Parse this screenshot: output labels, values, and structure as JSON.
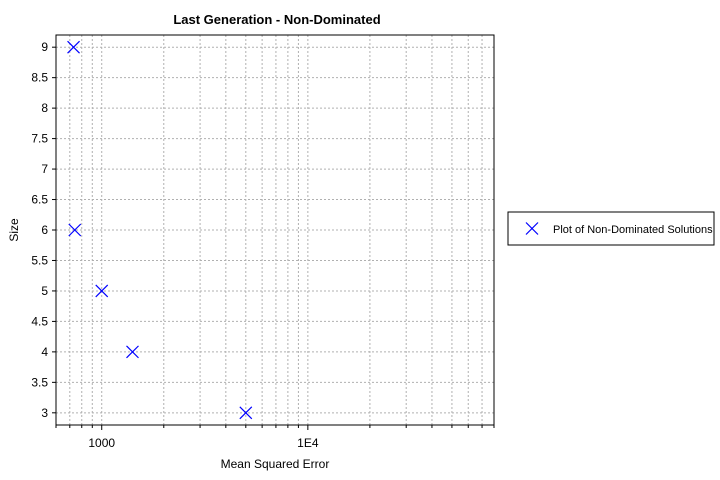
{
  "chart_data": {
    "type": "scatter",
    "title": "Last Generation - Non-Dominated",
    "xlabel": "Mean Squared Error",
    "ylabel": "Size",
    "x_scale": "log",
    "xlim": [
      600,
      80000
    ],
    "ylim": [
      2.8,
      9.2
    ],
    "x_tick_labels": [
      {
        "value": 1000,
        "label": "1000"
      },
      {
        "value": 10000,
        "label": "1E4"
      }
    ],
    "y_ticks": [
      3,
      3.5,
      4,
      4.5,
      5,
      5.5,
      6,
      6.5,
      7,
      7.5,
      8,
      8.5,
      9
    ],
    "grid": true,
    "legend_position": "right",
    "marker_color": "#0000ff",
    "series": [
      {
        "name": "Plot of Non-Dominated Solutions",
        "marker": "x",
        "points": [
          {
            "x": 730,
            "y": 9
          },
          {
            "x": 740,
            "y": 6
          },
          {
            "x": 1000,
            "y": 5
          },
          {
            "x": 1410,
            "y": 4
          },
          {
            "x": 5000,
            "y": 3
          }
        ]
      }
    ]
  }
}
